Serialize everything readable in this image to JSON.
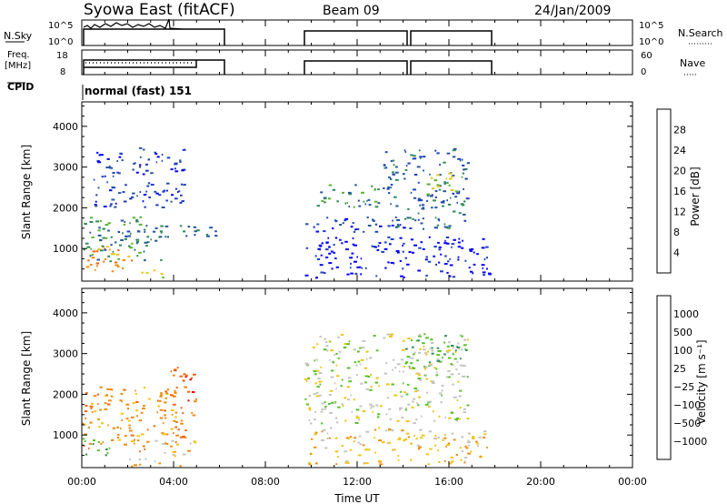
{
  "header": {
    "title": "Syowa East (fitACF)",
    "beam": "Beam 09",
    "date": "24/Jan/2009"
  },
  "top_panels": {
    "nsky_label": "N.Sky",
    "nsky_ticks": [
      "10^5",
      "10^0"
    ],
    "nsearch_label": "N.Search",
    "freq_label_1": "Freq.",
    "freq_label_2": "[MHz]",
    "freq_ticks": [
      "18",
      "8"
    ],
    "nave_label": "Nave",
    "nave_ticks": [
      "60",
      "0"
    ],
    "cpid_label": "CPID",
    "cpid_text": "normal (fast) 151"
  },
  "colors": {
    "power": [
      "#0000ff",
      "#1d3fbf",
      "#25569e",
      "#2e8a5a",
      "#58b32a",
      "#e7c51f",
      "#f08a0e",
      "#f26610",
      "#ee0000"
    ],
    "velocity": [
      "#0000ff",
      "#2a5aa8",
      "#2e8a5a",
      "#58c02a",
      "#c4c4c0",
      "#f2c516",
      "#f08a0e",
      "#f26610",
      "#ee0000"
    ]
  },
  "chart_data": [
    {
      "type": "heatmap",
      "panel": "power",
      "ylabel": "Slant Range [km]",
      "ylim": [
        200,
        4600
      ],
      "yticks": [
        "1000",
        "2000",
        "3000",
        "4000"
      ],
      "xlim": [
        0,
        24
      ],
      "colorbar_label": "Power [dB]",
      "colorbar_ticks": [
        "4",
        "8",
        "12",
        "16",
        "20",
        "24",
        "28"
      ],
      "regions": [
        {
          "t0": 0.0,
          "t1": 2.2,
          "r0": 400,
          "r1": 1100,
          "level": 6
        },
        {
          "t0": 0.0,
          "t1": 3.5,
          "r0": 700,
          "r1": 1800,
          "level": 3
        },
        {
          "t0": 0.3,
          "t1": 6.0,
          "r0": 1300,
          "r1": 1600,
          "level": 2
        },
        {
          "t0": 0.5,
          "t1": 4.5,
          "r0": 2000,
          "r1": 3500,
          "level": 1
        },
        {
          "t0": 2.5,
          "t1": 4.0,
          "r0": 300,
          "r1": 500,
          "level": 5
        },
        {
          "t0": 9.7,
          "t1": 14.3,
          "r0": 1400,
          "r1": 1800,
          "level": 1
        },
        {
          "t0": 10.0,
          "t1": 13.0,
          "r0": 2000,
          "r1": 2600,
          "level": 3
        },
        {
          "t0": 13.0,
          "t1": 16.8,
          "r0": 1500,
          "r1": 3500,
          "level": 2
        },
        {
          "t0": 15.0,
          "t1": 16.7,
          "r0": 2300,
          "r1": 2900,
          "level": 4
        },
        {
          "t0": 9.7,
          "t1": 17.8,
          "r0": 300,
          "r1": 1300,
          "level": 0
        }
      ]
    },
    {
      "type": "heatmap",
      "panel": "velocity",
      "ylabel": "Slant Range [km]",
      "ylim": [
        200,
        4600
      ],
      "yticks": [
        "1000",
        "2000",
        "3000",
        "4000"
      ],
      "xlabel": "Time UT",
      "xticks": [
        "00:00",
        "04:00",
        "08:00",
        "12:00",
        "16:00",
        "20:00",
        "00:00"
      ],
      "xlim": [
        0,
        24
      ],
      "colorbar_label": "Velocity [m s⁻¹]",
      "colorbar_ticks": [
        "1000",
        "500",
        "100",
        "25",
        "−25",
        "−100",
        "−500",
        "−1000"
      ],
      "regions": [
        {
          "t0": 0.0,
          "t1": 1.2,
          "r0": 500,
          "r1": 1000,
          "level": 2
        },
        {
          "t0": 0.0,
          "t1": 4.2,
          "r0": 600,
          "r1": 2200,
          "level": 6
        },
        {
          "t0": 3.0,
          "t1": 5.0,
          "r0": 500,
          "r1": 900,
          "level": 5
        },
        {
          "t0": 2.0,
          "t1": 4.5,
          "r0": 250,
          "r1": 450,
          "level": 5
        },
        {
          "t0": 3.8,
          "t1": 5.0,
          "r0": 900,
          "r1": 2700,
          "level": 7
        },
        {
          "t0": 9.7,
          "t1": 16.8,
          "r0": 1300,
          "r1": 3500,
          "level": 4
        },
        {
          "t0": 14.0,
          "t1": 16.8,
          "r0": 2600,
          "r1": 3500,
          "level": 3
        },
        {
          "t0": 9.7,
          "t1": 17.8,
          "r0": 300,
          "r1": 1200,
          "level": 5
        }
      ]
    }
  ]
}
